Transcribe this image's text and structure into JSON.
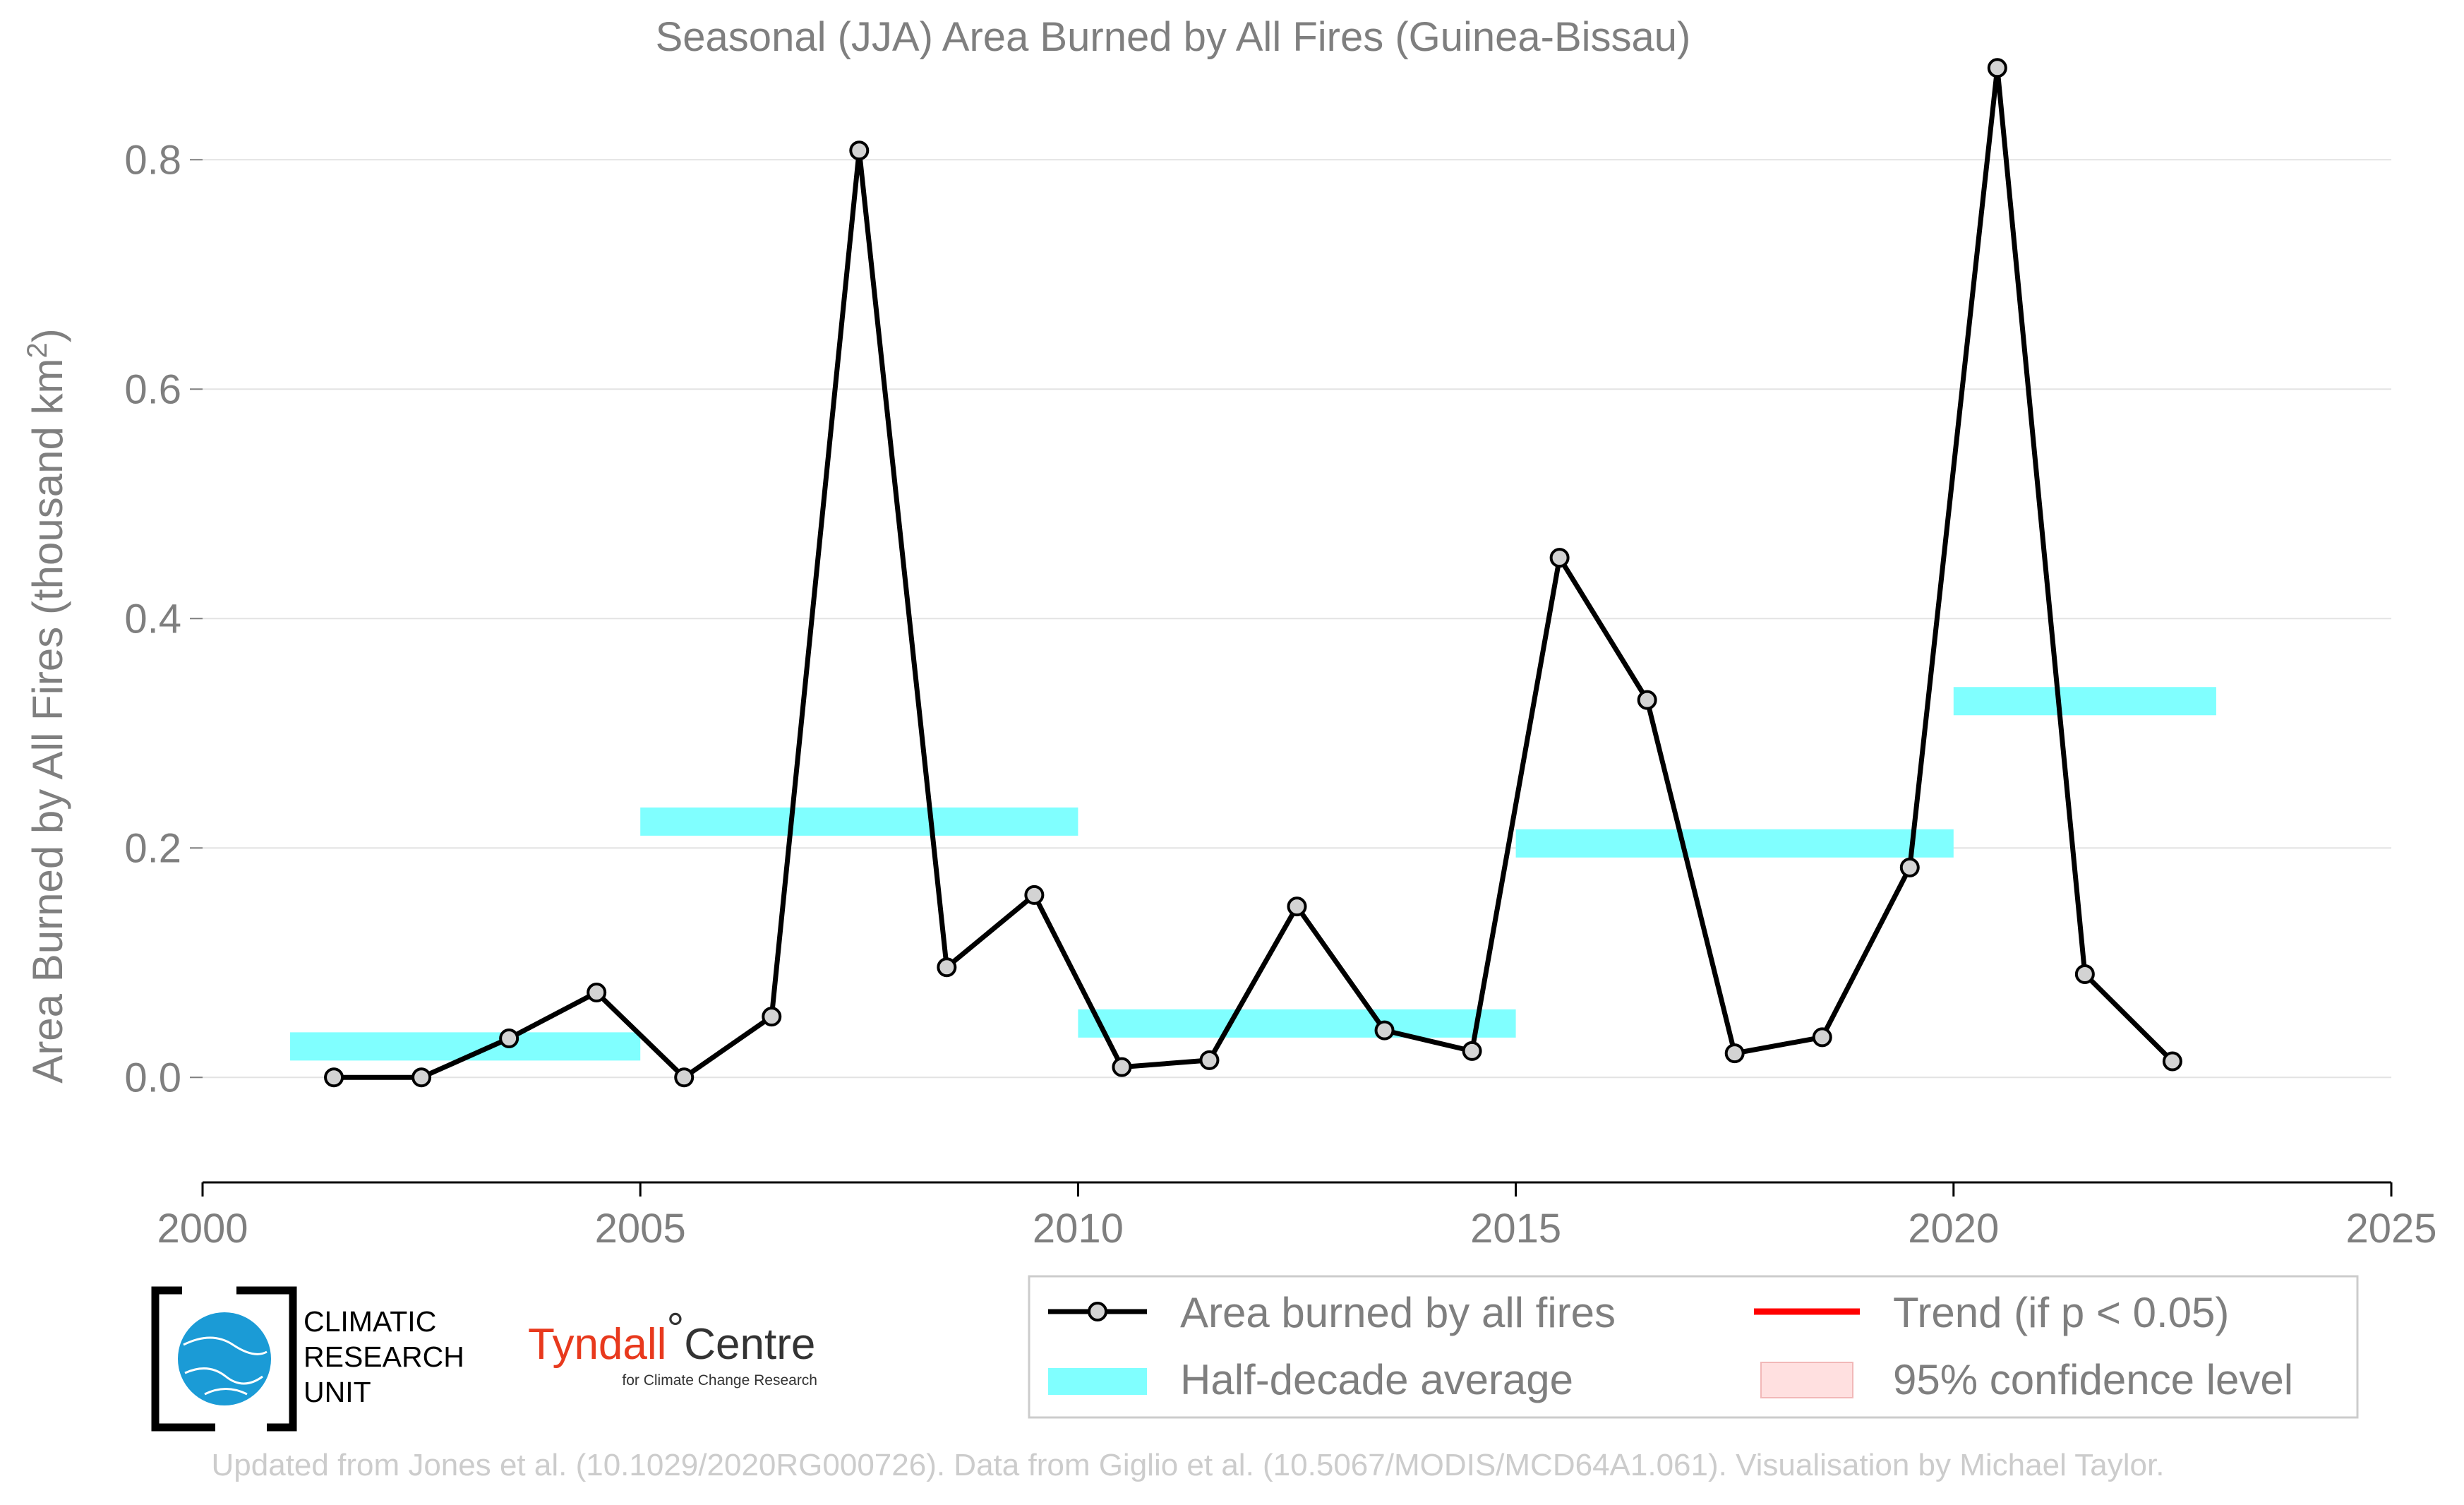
{
  "chart_data": {
    "type": "line",
    "title": "Seasonal (JJA) Area Burned by All Fires (Guinea-Bissau)",
    "ylabel": "Area Burned by All Fires (thousand km²)",
    "ylabel_main": "Area Burned by All Fires (thousand km",
    "ylabel_sup": "2",
    "ylabel_end": ")",
    "xlabel": "",
    "xlim": [
      2000,
      2025
    ],
    "ylim": [
      -0.07,
      0.89
    ],
    "x_ticks": [
      "2000",
      "2005",
      "2010",
      "2015",
      "2020",
      "2025"
    ],
    "y_ticks": [
      "0.0",
      "0.2",
      "0.4",
      "0.6",
      "0.8"
    ],
    "grid": "horizontal",
    "legend_position": "bottom-right",
    "series": [
      {
        "name": "Area burned by all fires",
        "type": "line",
        "color": "#000000",
        "x": [
          2001.5,
          2002.5,
          2003.5,
          2004.5,
          2005.5,
          2006.5,
          2007.5,
          2008.5,
          2009.5,
          2010.5,
          2011.5,
          2012.5,
          2013.5,
          2014.5,
          2015.5,
          2016.5,
          2017.5,
          2018.5,
          2019.5,
          2020.5,
          2021.5,
          2022.5
        ],
        "y": [
          0.0,
          0.0,
          0.034,
          0.074,
          0.0,
          0.053,
          0.808,
          0.096,
          0.159,
          0.009,
          0.015,
          0.149,
          0.041,
          0.023,
          0.453,
          0.329,
          0.021,
          0.035,
          0.183,
          0.88,
          0.09,
          0.014
        ]
      },
      {
        "name": "Half-decade average",
        "type": "segments",
        "color": "#80ffff",
        "segments": [
          {
            "x0": 2001,
            "x1": 2005,
            "y": 0.027
          },
          {
            "x0": 2005,
            "x1": 2010,
            "y": 0.223
          },
          {
            "x0": 2010,
            "x1": 2015,
            "y": 0.047
          },
          {
            "x0": 2015,
            "x1": 2020,
            "y": 0.204
          },
          {
            "x0": 2020,
            "x1": 2023,
            "y": 0.328
          }
        ]
      }
    ],
    "legend": [
      {
        "label": "Area burned by all fires",
        "symbol": "line-marker",
        "color": "#000000"
      },
      {
        "label": "Half-decade average",
        "symbol": "band",
        "color": "#80ffff"
      },
      {
        "label": "Trend (if p < 0.05)",
        "symbol": "line",
        "color": "#ff0000"
      },
      {
        "label": "95% confidence level",
        "symbol": "patch",
        "color": "#ffe0e0"
      }
    ]
  },
  "logos": {
    "cru_lines": [
      "CLIMATIC",
      "RESEARCH",
      "UNIT"
    ],
    "tyndall_name_a": "Tyndall",
    "tyndall_degree": "°",
    "tyndall_name_b": "Centre",
    "tyndall_sub": "for Climate Change Research"
  },
  "footer": "Updated from Jones et al. (10.1029/2020RG000726). Data from Giglio et al. (10.5067/MODIS/MCD64A1.061). Visualisation by Michael Taylor."
}
